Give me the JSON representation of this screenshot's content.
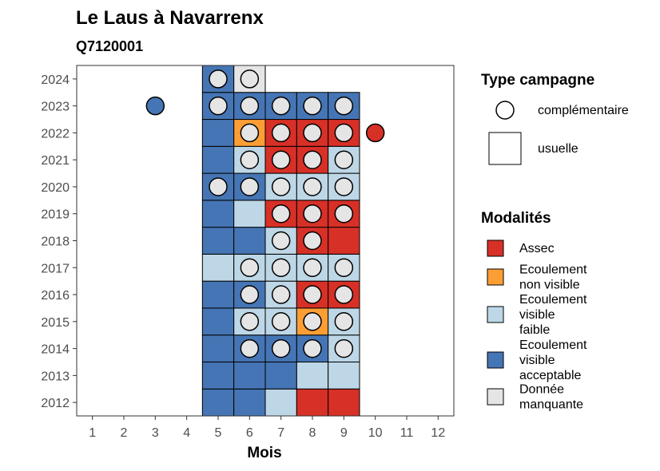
{
  "chart_data": {
    "type": "heatmap",
    "title": "Le Laus à Navarrenx",
    "subtitle": "Q7120001",
    "xlabel": "Mois",
    "ylabel": "",
    "x_ticks": [
      "1",
      "2",
      "3",
      "4",
      "5",
      "6",
      "7",
      "8",
      "9",
      "10",
      "11",
      "12"
    ],
    "y_ticks": [
      "2012",
      "2013",
      "2014",
      "2015",
      "2016",
      "2017",
      "2018",
      "2019",
      "2020",
      "2021",
      "2022",
      "2023",
      "2024"
    ],
    "xlim": [
      0.5,
      12.5
    ],
    "ylim": [
      2011.5,
      2024.5
    ],
    "colors": {
      "Assec": "#d73027",
      "Ecoulement non visible": "#fd9e35",
      "Ecoulement visible faible": "#bdd7e7",
      "Ecoulement visible acceptable": "#4575b4",
      "Donnée manquante": "#e5e5e5"
    },
    "usuelle": [
      {
        "year": 2012,
        "month": 5,
        "modalite": "Ecoulement visible acceptable"
      },
      {
        "year": 2012,
        "month": 6,
        "modalite": "Ecoulement visible acceptable"
      },
      {
        "year": 2012,
        "month": 7,
        "modalite": "Ecoulement visible faible"
      },
      {
        "year": 2012,
        "month": 8,
        "modalite": "Assec"
      },
      {
        "year": 2012,
        "month": 9,
        "modalite": "Assec"
      },
      {
        "year": 2013,
        "month": 5,
        "modalite": "Ecoulement visible acceptable"
      },
      {
        "year": 2013,
        "month": 6,
        "modalite": "Ecoulement visible acceptable"
      },
      {
        "year": 2013,
        "month": 7,
        "modalite": "Ecoulement visible acceptable"
      },
      {
        "year": 2013,
        "month": 8,
        "modalite": "Ecoulement visible faible"
      },
      {
        "year": 2013,
        "month": 9,
        "modalite": "Ecoulement visible faible"
      },
      {
        "year": 2014,
        "month": 5,
        "modalite": "Ecoulement visible acceptable"
      },
      {
        "year": 2014,
        "month": 6,
        "modalite": "Ecoulement visible acceptable"
      },
      {
        "year": 2014,
        "month": 7,
        "modalite": "Ecoulement visible acceptable"
      },
      {
        "year": 2014,
        "month": 8,
        "modalite": "Ecoulement visible acceptable"
      },
      {
        "year": 2014,
        "month": 9,
        "modalite": "Ecoulement visible faible"
      },
      {
        "year": 2015,
        "month": 5,
        "modalite": "Ecoulement visible acceptable"
      },
      {
        "year": 2015,
        "month": 6,
        "modalite": "Ecoulement visible faible"
      },
      {
        "year": 2015,
        "month": 7,
        "modalite": "Ecoulement visible faible"
      },
      {
        "year": 2015,
        "month": 8,
        "modalite": "Ecoulement non visible"
      },
      {
        "year": 2015,
        "month": 9,
        "modalite": "Ecoulement visible faible"
      },
      {
        "year": 2016,
        "month": 5,
        "modalite": "Ecoulement visible acceptable"
      },
      {
        "year": 2016,
        "month": 6,
        "modalite": "Ecoulement visible acceptable"
      },
      {
        "year": 2016,
        "month": 7,
        "modalite": "Ecoulement visible faible"
      },
      {
        "year": 2016,
        "month": 8,
        "modalite": "Assec"
      },
      {
        "year": 2016,
        "month": 9,
        "modalite": "Assec"
      },
      {
        "year": 2017,
        "month": 5,
        "modalite": "Ecoulement visible faible"
      },
      {
        "year": 2017,
        "month": 6,
        "modalite": "Ecoulement visible faible"
      },
      {
        "year": 2017,
        "month": 7,
        "modalite": "Ecoulement visible faible"
      },
      {
        "year": 2017,
        "month": 8,
        "modalite": "Ecoulement visible faible"
      },
      {
        "year": 2017,
        "month": 9,
        "modalite": "Ecoulement visible faible"
      },
      {
        "year": 2018,
        "month": 5,
        "modalite": "Ecoulement visible acceptable"
      },
      {
        "year": 2018,
        "month": 6,
        "modalite": "Ecoulement visible acceptable"
      },
      {
        "year": 2018,
        "month": 7,
        "modalite": "Ecoulement visible faible"
      },
      {
        "year": 2018,
        "month": 8,
        "modalite": "Assec"
      },
      {
        "year": 2018,
        "month": 9,
        "modalite": "Assec"
      },
      {
        "year": 2019,
        "month": 5,
        "modalite": "Ecoulement visible acceptable"
      },
      {
        "year": 2019,
        "month": 6,
        "modalite": "Ecoulement visible faible"
      },
      {
        "year": 2019,
        "month": 7,
        "modalite": "Assec"
      },
      {
        "year": 2019,
        "month": 8,
        "modalite": "Assec"
      },
      {
        "year": 2019,
        "month": 9,
        "modalite": "Assec"
      },
      {
        "year": 2020,
        "month": 5,
        "modalite": "Ecoulement visible acceptable"
      },
      {
        "year": 2020,
        "month": 6,
        "modalite": "Ecoulement visible acceptable"
      },
      {
        "year": 2020,
        "month": 7,
        "modalite": "Ecoulement visible faible"
      },
      {
        "year": 2020,
        "month": 8,
        "modalite": "Ecoulement visible faible"
      },
      {
        "year": 2020,
        "month": 9,
        "modalite": "Ecoulement visible faible"
      },
      {
        "year": 2021,
        "month": 5,
        "modalite": "Ecoulement visible acceptable"
      },
      {
        "year": 2021,
        "month": 6,
        "modalite": "Ecoulement visible faible"
      },
      {
        "year": 2021,
        "month": 7,
        "modalite": "Assec"
      },
      {
        "year": 2021,
        "month": 8,
        "modalite": "Assec"
      },
      {
        "year": 2021,
        "month": 9,
        "modalite": "Ecoulement visible faible"
      },
      {
        "year": 2022,
        "month": 5,
        "modalite": "Ecoulement visible acceptable"
      },
      {
        "year": 2022,
        "month": 6,
        "modalite": "Ecoulement non visible"
      },
      {
        "year": 2022,
        "month": 7,
        "modalite": "Assec"
      },
      {
        "year": 2022,
        "month": 8,
        "modalite": "Assec"
      },
      {
        "year": 2022,
        "month": 9,
        "modalite": "Assec"
      },
      {
        "year": 2023,
        "month": 5,
        "modalite": "Ecoulement visible acceptable"
      },
      {
        "year": 2023,
        "month": 6,
        "modalite": "Ecoulement visible acceptable"
      },
      {
        "year": 2023,
        "month": 7,
        "modalite": "Ecoulement visible acceptable"
      },
      {
        "year": 2023,
        "month": 8,
        "modalite": "Ecoulement visible acceptable"
      },
      {
        "year": 2023,
        "month": 9,
        "modalite": "Ecoulement visible acceptable"
      },
      {
        "year": 2024,
        "month": 5,
        "modalite": "Ecoulement visible acceptable"
      },
      {
        "year": 2024,
        "month": 6,
        "modalite": "Donnée manquante"
      }
    ],
    "complementaire": [
      {
        "year": 2014,
        "month": 6,
        "modalite": "Donnée manquante"
      },
      {
        "year": 2014,
        "month": 7,
        "modalite": "Donnée manquante"
      },
      {
        "year": 2014,
        "month": 8,
        "modalite": "Donnée manquante"
      },
      {
        "year": 2014,
        "month": 9,
        "modalite": "Donnée manquante"
      },
      {
        "year": 2015,
        "month": 6,
        "modalite": "Donnée manquante"
      },
      {
        "year": 2015,
        "month": 7,
        "modalite": "Donnée manquante"
      },
      {
        "year": 2015,
        "month": 8,
        "modalite": "Donnée manquante"
      },
      {
        "year": 2015,
        "month": 9,
        "modalite": "Donnée manquante"
      },
      {
        "year": 2016,
        "month": 6,
        "modalite": "Donnée manquante"
      },
      {
        "year": 2016,
        "month": 7,
        "modalite": "Donnée manquante"
      },
      {
        "year": 2016,
        "month": 8,
        "modalite": "Donnée manquante"
      },
      {
        "year": 2016,
        "month": 9,
        "modalite": "Donnée manquante"
      },
      {
        "year": 2017,
        "month": 6,
        "modalite": "Donnée manquante"
      },
      {
        "year": 2017,
        "month": 7,
        "modalite": "Donnée manquante"
      },
      {
        "year": 2017,
        "month": 8,
        "modalite": "Donnée manquante"
      },
      {
        "year": 2017,
        "month": 9,
        "modalite": "Donnée manquante"
      },
      {
        "year": 2018,
        "month": 7,
        "modalite": "Donnée manquante"
      },
      {
        "year": 2018,
        "month": 8,
        "modalite": "Donnée manquante"
      },
      {
        "year": 2019,
        "month": 7,
        "modalite": "Donnée manquante"
      },
      {
        "year": 2019,
        "month": 8,
        "modalite": "Donnée manquante"
      },
      {
        "year": 2019,
        "month": 9,
        "modalite": "Donnée manquante"
      },
      {
        "year": 2020,
        "month": 5,
        "modalite": "Donnée manquante"
      },
      {
        "year": 2020,
        "month": 6,
        "modalite": "Donnée manquante"
      },
      {
        "year": 2020,
        "month": 7,
        "modalite": "Donnée manquante"
      },
      {
        "year": 2020,
        "month": 8,
        "modalite": "Donnée manquante"
      },
      {
        "year": 2020,
        "month": 9,
        "modalite": "Donnée manquante"
      },
      {
        "year": 2021,
        "month": 6,
        "modalite": "Donnée manquante"
      },
      {
        "year": 2021,
        "month": 7,
        "modalite": "Donnée manquante"
      },
      {
        "year": 2021,
        "month": 8,
        "modalite": "Donnée manquante"
      },
      {
        "year": 2021,
        "month": 9,
        "modalite": "Donnée manquante"
      },
      {
        "year": 2022,
        "month": 6,
        "modalite": "Donnée manquante"
      },
      {
        "year": 2022,
        "month": 7,
        "modalite": "Donnée manquante"
      },
      {
        "year": 2022,
        "month": 8,
        "modalite": "Donnée manquante"
      },
      {
        "year": 2022,
        "month": 9,
        "modalite": "Donnée manquante"
      },
      {
        "year": 2022,
        "month": 10,
        "modalite": "Assec"
      },
      {
        "year": 2023,
        "month": 3,
        "modalite": "Ecoulement visible acceptable"
      },
      {
        "year": 2023,
        "month": 5,
        "modalite": "Donnée manquante"
      },
      {
        "year": 2023,
        "month": 6,
        "modalite": "Donnée manquante"
      },
      {
        "year": 2023,
        "month": 7,
        "modalite": "Donnée manquante"
      },
      {
        "year": 2023,
        "month": 8,
        "modalite": "Donnée manquante"
      },
      {
        "year": 2023,
        "month": 9,
        "modalite": "Donnée manquante"
      },
      {
        "year": 2024,
        "month": 5,
        "modalite": "Donnée manquante"
      },
      {
        "year": 2024,
        "month": 6,
        "modalite": "Donnée manquante"
      }
    ],
    "legend_type": {
      "title": "Type campagne",
      "items": [
        {
          "label": "complémentaire",
          "shape": "circle"
        },
        {
          "label": "usuelle",
          "shape": "square"
        }
      ]
    },
    "legend_modalites": {
      "title": "Modalités",
      "items": [
        {
          "key": "Assec",
          "lines": [
            "Assec"
          ]
        },
        {
          "key": "Ecoulement non visible",
          "lines": [
            "Ecoulement",
            "non visible"
          ]
        },
        {
          "key": "Ecoulement visible faible",
          "lines": [
            "Ecoulement",
            "visible",
            "faible"
          ]
        },
        {
          "key": "Ecoulement visible acceptable",
          "lines": [
            "Ecoulement",
            "visible",
            "acceptable"
          ]
        },
        {
          "key": "Donnée manquante",
          "lines": [
            "Donnée",
            "manquante"
          ]
        }
      ]
    },
    "grid": false,
    "legend_position": "right"
  }
}
